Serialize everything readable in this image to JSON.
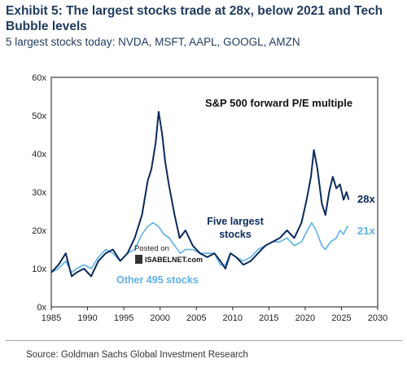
{
  "header": {
    "title": "Exhibit 5: The largest stocks trade at 28x, below 2021 and Tech Bubble levels",
    "subtitle": "5 largest stocks today: NVDA, MSFT, AAPL, GOOGL, AMZN"
  },
  "footer": {
    "source": "Source: Goldman Sachs Global Investment Research"
  },
  "watermark": {
    "line1": "Posted on",
    "line2": "ISABELNET.com"
  },
  "colors": {
    "top5": "#0c2a5c",
    "other": "#5fb0e6",
    "frame": "#1a1a1a"
  },
  "chart_data": {
    "type": "line",
    "title": "S&P 500 forward P/E multiple",
    "xlim": [
      1985,
      2030
    ],
    "ylim": [
      0,
      60
    ],
    "x_ticks": [
      "1985",
      "1990",
      "1995",
      "2000",
      "2005",
      "2010",
      "2015",
      "2020",
      "2025",
      "2030"
    ],
    "y_ticks": [
      "0x",
      "10x",
      "20x",
      "30x",
      "40x",
      "50x",
      "60x"
    ],
    "series": [
      {
        "name": "Five largest stocks",
        "end_label": "28x",
        "points": [
          [
            1985,
            9
          ],
          [
            1986,
            11
          ],
          [
            1987,
            14
          ],
          [
            1987.8,
            8
          ],
          [
            1988.5,
            9
          ],
          [
            1989.5,
            10
          ],
          [
            1990.5,
            8
          ],
          [
            1991.5,
            12
          ],
          [
            1992.5,
            14
          ],
          [
            1993.5,
            15
          ],
          [
            1994.5,
            12
          ],
          [
            1995.5,
            14
          ],
          [
            1996.5,
            18
          ],
          [
            1997.5,
            24
          ],
          [
            1998.3,
            33
          ],
          [
            1998.8,
            36
          ],
          [
            1999.4,
            43
          ],
          [
            1999.8,
            51
          ],
          [
            2000.3,
            45
          ],
          [
            2000.7,
            38
          ],
          [
            2001.2,
            32
          ],
          [
            2002,
            24
          ],
          [
            2002.7,
            18
          ],
          [
            2003.5,
            20
          ],
          [
            2004.5,
            16
          ],
          [
            2005.5,
            14
          ],
          [
            2006.5,
            13
          ],
          [
            2007.5,
            14
          ],
          [
            2008.3,
            12
          ],
          [
            2009,
            10
          ],
          [
            2009.7,
            14
          ],
          [
            2010.5,
            13
          ],
          [
            2011.5,
            11
          ],
          [
            2012.5,
            12
          ],
          [
            2013.5,
            14
          ],
          [
            2014.5,
            16
          ],
          [
            2015.5,
            17
          ],
          [
            2016.5,
            18
          ],
          [
            2017.5,
            20
          ],
          [
            2018.5,
            18
          ],
          [
            2019.5,
            22
          ],
          [
            2020.2,
            28
          ],
          [
            2020.8,
            34
          ],
          [
            2021.2,
            41
          ],
          [
            2021.7,
            36
          ],
          [
            2022.3,
            27
          ],
          [
            2022.8,
            24
          ],
          [
            2023.3,
            30
          ],
          [
            2023.8,
            34
          ],
          [
            2024.3,
            31
          ],
          [
            2024.8,
            32
          ],
          [
            2025.3,
            28
          ],
          [
            2025.7,
            30
          ],
          [
            2026,
            28
          ]
        ]
      },
      {
        "name": "Other 495 stocks",
        "end_label": "21x",
        "points": [
          [
            1985,
            9
          ],
          [
            1986,
            10
          ],
          [
            1987,
            12
          ],
          [
            1987.8,
            9
          ],
          [
            1988.5,
            10
          ],
          [
            1989.5,
            11
          ],
          [
            1990.5,
            10
          ],
          [
            1991.5,
            13
          ],
          [
            1992.5,
            15
          ],
          [
            1993.5,
            14
          ],
          [
            1994.5,
            12
          ],
          [
            1995.5,
            14
          ],
          [
            1996.5,
            15
          ],
          [
            1997.5,
            19
          ],
          [
            1998.3,
            21
          ],
          [
            1999,
            22
          ],
          [
            1999.8,
            21
          ],
          [
            2000.5,
            19
          ],
          [
            2001.3,
            18
          ],
          [
            2002,
            16
          ],
          [
            2002.8,
            14
          ],
          [
            2003.5,
            15
          ],
          [
            2004.5,
            15
          ],
          [
            2005.5,
            14
          ],
          [
            2006.5,
            14
          ],
          [
            2007.5,
            14
          ],
          [
            2008.3,
            11
          ],
          [
            2009,
            11
          ],
          [
            2009.7,
            14
          ],
          [
            2010.5,
            13
          ],
          [
            2011.5,
            12
          ],
          [
            2012.5,
            13
          ],
          [
            2013.5,
            15
          ],
          [
            2014.5,
            16
          ],
          [
            2015.5,
            17
          ],
          [
            2016.5,
            17
          ],
          [
            2017.5,
            18
          ],
          [
            2018.5,
            16
          ],
          [
            2019.5,
            17
          ],
          [
            2020.3,
            20
          ],
          [
            2020.9,
            22
          ],
          [
            2021.5,
            20
          ],
          [
            2022.3,
            16
          ],
          [
            2022.8,
            15
          ],
          [
            2023.5,
            17
          ],
          [
            2024.3,
            18
          ],
          [
            2024.8,
            20
          ],
          [
            2025.3,
            19
          ],
          [
            2025.8,
            21
          ],
          [
            2026,
            21
          ]
        ]
      }
    ],
    "annotations": [
      "Five largest stocks",
      "Other 495 stocks"
    ]
  }
}
